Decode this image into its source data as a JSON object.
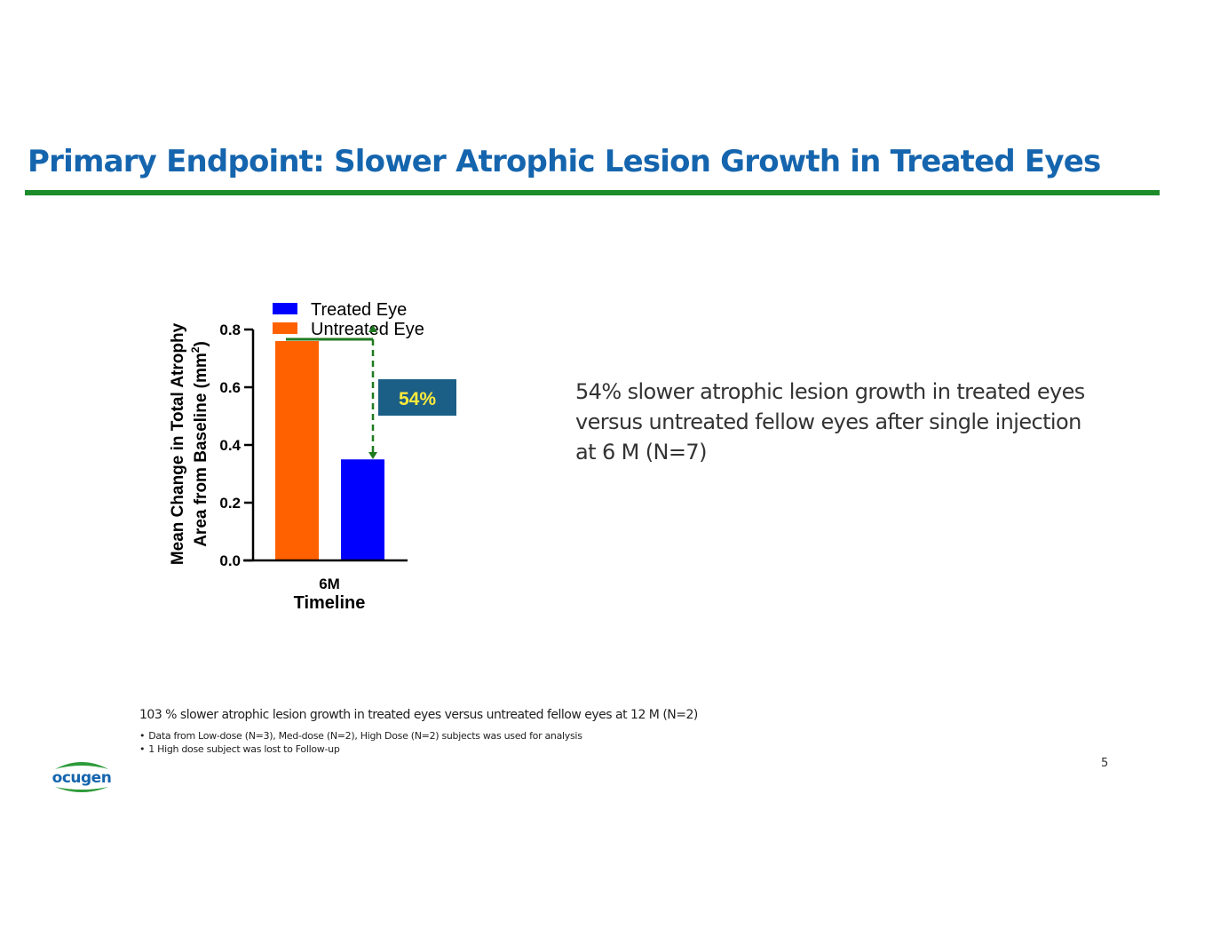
{
  "slide": {
    "title": "Primary Endpoint: Slower Atrophic Lesion Growth in Treated Eyes",
    "callout": "54% slower atrophic lesion growth in treated eyes versus untreated fellow eyes after single injection at 6 M (N=7)",
    "footnote_main": "103 % slower atrophic lesion growth in treated eyes versus untreated fellow eyes at 12 M (N=2)",
    "footnotes": [
      "Data from Low-dose (N=3), Med-dose (N=2), High Dose (N=2) subjects was used for analysis",
      "1 High dose subject was lost to Follow-up"
    ],
    "bullet": "•",
    "page_number": "5",
    "logo_text": "ocugen",
    "colors": {
      "title": "#1565ae",
      "rule": "#1c8c2a",
      "treated": "#0000ff",
      "untreated": "#ff6100",
      "arrow": "#1f7a1f",
      "badge_fill": "#1b5f86",
      "badge_text": "#ffeb3b"
    }
  },
  "chart_data": {
    "type": "bar",
    "categories": [
      "6M"
    ],
    "series": [
      {
        "name": "Untreated Eye",
        "values": [
          0.76
        ],
        "color": "#ff6100"
      },
      {
        "name": "Treated Eye",
        "values": [
          0.35
        ],
        "color": "#0000ff"
      }
    ],
    "legend": [
      "Treated Eye",
      "Untreated Eye"
    ],
    "xlabel": "Timeline",
    "ylabel_line1": "Mean Change in Total Atrophy",
    "ylabel_line2": "Area from Baseline (mm",
    "ylabel_sup": "2",
    "ylabel_close": ")",
    "ylim": [
      0,
      0.8
    ],
    "yticks": [
      "0.0",
      "0.2",
      "0.4",
      "0.6",
      "0.8"
    ],
    "annotation": "54%",
    "legend_position": "top"
  }
}
